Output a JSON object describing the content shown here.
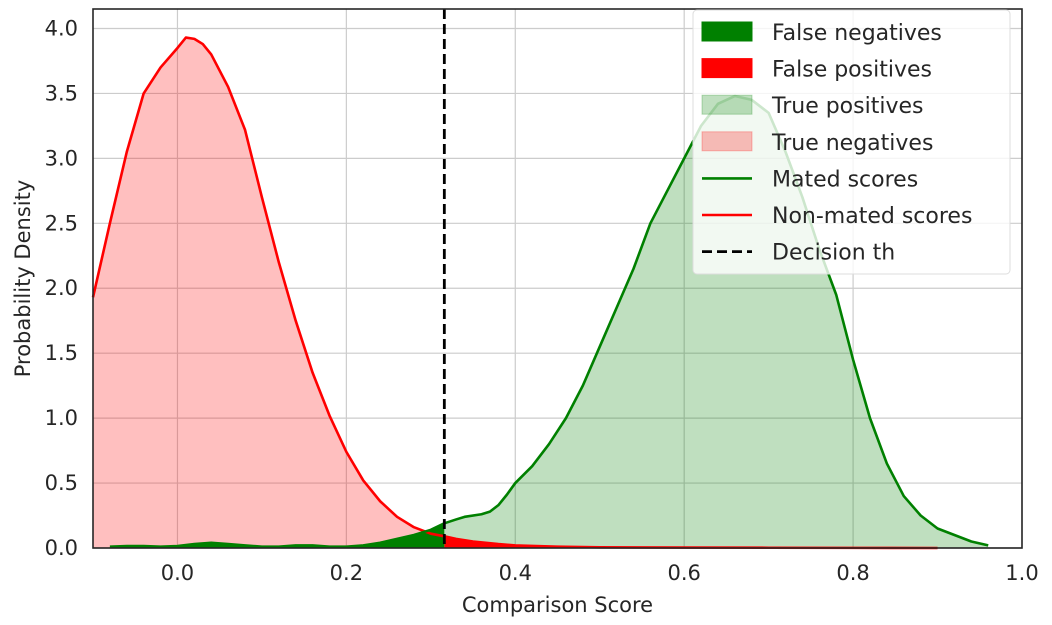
{
  "chart_data": {
    "type": "area",
    "xlabel": "Comparison Score",
    "ylabel": "Probability Density",
    "xlim": [
      -0.1,
      1.0
    ],
    "ylim": [
      0,
      4.15
    ],
    "xticks": [
      "0.0",
      "0.2",
      "0.4",
      "0.6",
      "0.8",
      "1.0"
    ],
    "yticks": [
      "0.0",
      "0.5",
      "1.0",
      "1.5",
      "2.0",
      "2.5",
      "3.0",
      "3.5",
      "4.0"
    ],
    "grid": true,
    "legend_position": "top-right",
    "threshold": 0.316,
    "series": [
      {
        "name": "Mated scores",
        "kind": "line",
        "color": "#008000",
        "x": [
          -0.08,
          -0.06,
          -0.04,
          -0.02,
          0.0,
          0.02,
          0.04,
          0.06,
          0.08,
          0.1,
          0.12,
          0.14,
          0.16,
          0.18,
          0.2,
          0.22,
          0.24,
          0.26,
          0.28,
          0.3,
          0.316,
          0.33,
          0.34,
          0.36,
          0.37,
          0.38,
          0.39,
          0.4,
          0.42,
          0.44,
          0.46,
          0.48,
          0.5,
          0.52,
          0.54,
          0.56,
          0.58,
          0.6,
          0.62,
          0.64,
          0.66,
          0.68,
          0.7,
          0.72,
          0.74,
          0.76,
          0.78,
          0.8,
          0.82,
          0.84,
          0.86,
          0.88,
          0.9,
          0.92,
          0.94,
          0.96
        ],
        "y": [
          0.01,
          0.015,
          0.015,
          0.01,
          0.015,
          0.03,
          0.04,
          0.03,
          0.02,
          0.01,
          0.01,
          0.02,
          0.02,
          0.01,
          0.01,
          0.02,
          0.04,
          0.07,
          0.1,
          0.14,
          0.19,
          0.22,
          0.24,
          0.26,
          0.28,
          0.33,
          0.41,
          0.5,
          0.63,
          0.8,
          1.0,
          1.25,
          1.55,
          1.85,
          2.15,
          2.5,
          2.75,
          3.0,
          3.25,
          3.42,
          3.48,
          3.45,
          3.35,
          3.05,
          2.7,
          2.3,
          1.95,
          1.45,
          1.0,
          0.65,
          0.4,
          0.25,
          0.15,
          0.1,
          0.05,
          0.02
        ]
      },
      {
        "name": "Non-mated scores",
        "kind": "line",
        "color": "#ff0000",
        "x": [
          -0.1,
          -0.08,
          -0.06,
          -0.04,
          -0.02,
          0.0,
          0.01,
          0.02,
          0.03,
          0.04,
          0.06,
          0.08,
          0.1,
          0.12,
          0.14,
          0.16,
          0.18,
          0.2,
          0.22,
          0.24,
          0.26,
          0.28,
          0.3,
          0.316,
          0.33,
          0.35,
          0.38,
          0.4,
          0.45,
          0.5,
          0.6,
          0.7,
          0.8,
          0.9
        ],
        "y": [
          1.93,
          2.5,
          3.05,
          3.5,
          3.7,
          3.85,
          3.93,
          3.92,
          3.88,
          3.8,
          3.55,
          3.22,
          2.7,
          2.2,
          1.75,
          1.35,
          1.02,
          0.74,
          0.52,
          0.36,
          0.24,
          0.16,
          0.11,
          0.09,
          0.07,
          0.05,
          0.03,
          0.02,
          0.01,
          0.005,
          0.003,
          0.002,
          0.001,
          0.0
        ]
      },
      {
        "name": "False negatives",
        "kind": "fill",
        "color": "#008000",
        "opacity": 1.0
      },
      {
        "name": "False positives",
        "kind": "fill",
        "color": "#ff0000",
        "opacity": 1.0
      },
      {
        "name": "True positives",
        "kind": "fill",
        "color": "#008000",
        "opacity": 0.25
      },
      {
        "name": "True negatives",
        "kind": "fill",
        "color": "#ff0000",
        "opacity": 0.25
      },
      {
        "name": "Decision th",
        "kind": "vline",
        "color": "#000000"
      }
    ],
    "legend": [
      {
        "label": "False negatives",
        "kind": "patch",
        "color": "#008000",
        "opacity": 1.0
      },
      {
        "label": "False positives",
        "kind": "patch",
        "color": "#ff0000",
        "opacity": 1.0
      },
      {
        "label": "True positives",
        "kind": "patch",
        "color": "#008000",
        "opacity": 0.25
      },
      {
        "label": "True negatives",
        "kind": "patch",
        "color": "#ff0000",
        "opacity": 0.25
      },
      {
        "label": "Mated scores",
        "kind": "line",
        "color": "#008000"
      },
      {
        "label": "Non-mated scores",
        "kind": "line",
        "color": "#ff0000"
      },
      {
        "label": "Decision th",
        "kind": "dashed",
        "color": "#000000"
      }
    ]
  }
}
